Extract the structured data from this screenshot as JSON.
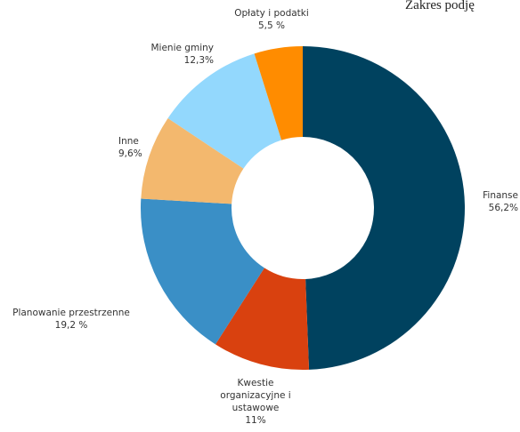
{
  "chart_data": {
    "type": "donut",
    "title": "Zakres podję",
    "categories": [
      "Finanse",
      "Kwestie organizacyjne i ustawowe",
      "Planowanie przestrzenne",
      "Inne",
      "Mienie gminy",
      "Opłaty i podatki"
    ],
    "values": [
      56.2,
      11,
      19.2,
      9.6,
      12.3,
      5.5
    ],
    "value_labels": [
      "56,2%",
      "11%",
      "19,2 %",
      "9,6%",
      "12,3%",
      "5,5 %"
    ],
    "colors": [
      "#00425f",
      "#d9410f",
      "#3a8fc6",
      "#f3b86e",
      "#93d8fd",
      "#ff8c00"
    ]
  }
}
